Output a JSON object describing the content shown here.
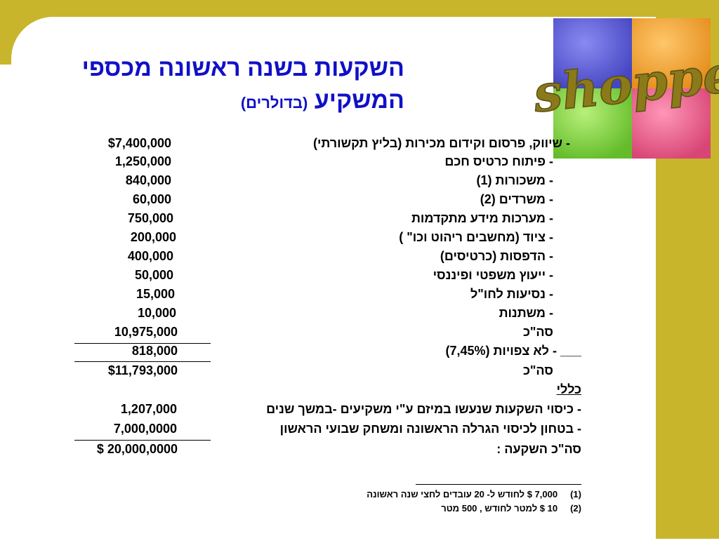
{
  "title": {
    "line1": "השקעות בשנה ראשונה מכספי",
    "line2": "המשקיע",
    "unit": "(בדולרים)"
  },
  "logo": {
    "text": "shopper"
  },
  "items": [
    {
      "label": "- שיווק, פרסום וקידום מכירות (בליץ תקשורתי)",
      "amount": "$7,400,000"
    },
    {
      "label": "- פיתוח כרטיס חכם",
      "amount": "1,250,000"
    },
    {
      "label": "- משכורות (1)",
      "amount": "840,000"
    },
    {
      "label": "- משרדים (2)",
      "amount": "60,000"
    },
    {
      "label": "- מערכות מידע מתקדמות",
      "amount": "750,000"
    },
    {
      "label": "- ציוד (מחשבים ריהוט וכו\" )",
      "amount": "200,000"
    },
    {
      "label": "- הדפסות (כרטיסים)",
      "amount": "400,000"
    },
    {
      "label": "- ייעוץ משפטי ופיננסי",
      "amount": "50,000"
    },
    {
      "label": "- נסיעות לחו\"ל",
      "amount": "15,000"
    },
    {
      "label": "- משתנות",
      "amount": "10,000"
    }
  ],
  "subtotal1": {
    "label": "סה\"כ",
    "amount": "10,975,000"
  },
  "contingency": {
    "label": "___ - לא צפויות (7,45%)",
    "amount": "818,000"
  },
  "subtotal2": {
    "label": "סה\"כ",
    "amount": "$11,793,000"
  },
  "general": {
    "heading": "כללי",
    "items": [
      {
        "label": "- כיסוי השקעות שנעשו במיזם ע\"י משקיעים -במשך שנים",
        "amount": "1,207,000"
      },
      {
        "label": "- בטחון לכיסוי הגרלה הראשונה ומשחק שבועי הראשון",
        "amount": "7,000,0000"
      }
    ]
  },
  "total": {
    "label": "סה\"כ השקעה :",
    "amount": "$ 20,000,0000"
  },
  "footnotes": [
    {
      "num": "(1)",
      "text": "7,000 $ לחודש ל- 20 עובדים לחצי שנה ראשונה"
    },
    {
      "num": "(2)",
      "text": "10 $ למטר לחודש , 500 מטר"
    }
  ],
  "colors": {
    "frame": "#c9b52c",
    "title": "#1010c8"
  }
}
